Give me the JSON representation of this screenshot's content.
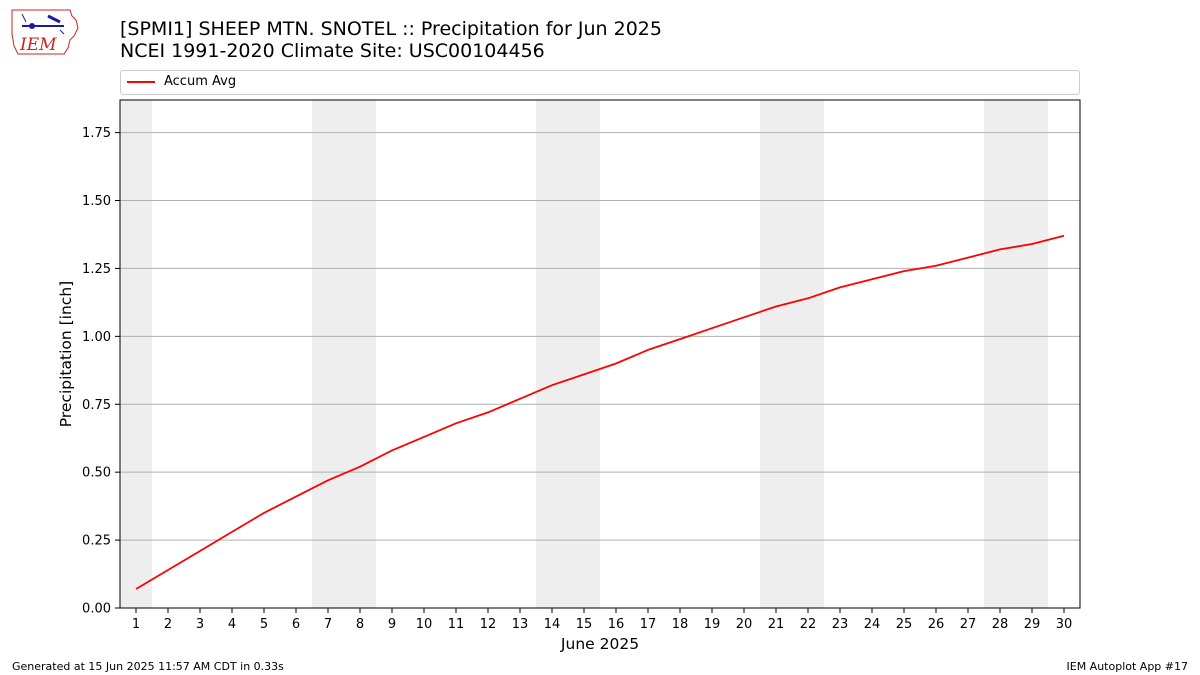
{
  "header": {
    "title_line1": "[SPMI1] SHEEP MTN. SNOTEL :: Precipitation for Jun 2025",
    "title_line2": "NCEI 1991-2020 Climate Site: USC00104456",
    "logo_text": "IEM"
  },
  "legend": {
    "entries": [
      {
        "label": "Accum Avg",
        "color": "#ff0000"
      }
    ],
    "placement": "top"
  },
  "footer": {
    "left": "Generated at 15 Jun 2025 11:57 AM CDT in 0.33s",
    "right": "IEM Autoplot App #17"
  },
  "chart_data": {
    "type": "line",
    "title": "[SPMI1] SHEEP MTN. SNOTEL :: Precipitation for Jun 2025",
    "subtitle": "NCEI 1991-2020 Climate Site: USC00104456",
    "xlabel": "June 2025",
    "ylabel": "Precipitation [inch]",
    "x": [
      1,
      2,
      3,
      4,
      5,
      6,
      7,
      8,
      9,
      10,
      11,
      12,
      13,
      14,
      15,
      16,
      17,
      18,
      19,
      20,
      21,
      22,
      23,
      24,
      25,
      26,
      27,
      28,
      29,
      30
    ],
    "xlim": [
      0.5,
      30.5
    ],
    "ylim": [
      0,
      1.87
    ],
    "yticks": [
      "0.00",
      "0.25",
      "0.50",
      "0.75",
      "1.00",
      "1.25",
      "1.50",
      "1.75"
    ],
    "grid": "horizontal",
    "weekend_shading": [
      [
        0.5,
        1.5
      ],
      [
        6.5,
        8.5
      ],
      [
        13.5,
        15.5
      ],
      [
        20.5,
        22.5
      ],
      [
        27.5,
        29.5
      ]
    ],
    "shade_color": "#eeeeee",
    "series": [
      {
        "name": "Accum Avg",
        "color": "#ff0000",
        "values": [
          0.07,
          0.14,
          0.21,
          0.28,
          0.35,
          0.41,
          0.47,
          0.52,
          0.58,
          0.63,
          0.68,
          0.72,
          0.77,
          0.82,
          0.86,
          0.9,
          0.95,
          0.99,
          1.03,
          1.07,
          1.11,
          1.14,
          1.18,
          1.21,
          1.24,
          1.26,
          1.29,
          1.32,
          1.34,
          1.37
        ]
      }
    ]
  }
}
